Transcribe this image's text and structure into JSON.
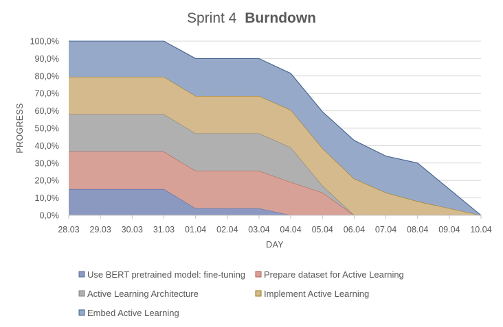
{
  "chart_data": {
    "type": "area",
    "stacked": true,
    "title": "Sprint 4 Burndown",
    "title_parts": {
      "normal": "Sprint 4",
      "bold": "Burndown"
    },
    "xlabel": "DAY",
    "ylabel": "PROGRESS",
    "ylim": [
      0,
      100
    ],
    "y_ticks": [
      "0,0%",
      "10,0%",
      "20,0%",
      "30,0%",
      "40,0%",
      "50,0%",
      "60,0%",
      "70,0%",
      "80,0%",
      "90,0%",
      "100,0%"
    ],
    "categories": [
      "28.03",
      "29.03",
      "30.03",
      "31.03",
      "01.04",
      "02.04",
      "03.04",
      "04.04",
      "05.04",
      "06.04",
      "07.04",
      "08.04",
      "09.04",
      "10.04"
    ],
    "grid": true,
    "legend_position": "bottom",
    "series": [
      {
        "name": "Use BERT pretrained model: fine-tuning",
        "color": "#8b98c0",
        "edge": "#5a6d9e",
        "values": [
          15,
          null,
          null,
          15,
          4,
          null,
          4,
          0,
          0,
          0,
          0,
          0,
          null,
          0
        ]
      },
      {
        "name": "Prepare dataset for Active Learning",
        "color": "#d8a197",
        "edge": "#b5614f",
        "values": [
          21.5,
          null,
          null,
          21.5,
          21.5,
          null,
          21.5,
          19,
          13,
          0,
          0,
          0,
          null,
          0
        ]
      },
      {
        "name": "Active Learning Architecture",
        "color": "#b0b0b0",
        "edge": "#7f7f7f",
        "values": [
          21.5,
          null,
          null,
          21.5,
          21.5,
          null,
          21.5,
          20,
          4,
          0,
          0,
          0,
          null,
          0
        ]
      },
      {
        "name": "Implement Active Learning",
        "color": "#d4ba8c",
        "edge": "#9a7a1e",
        "values": [
          21.5,
          null,
          null,
          21.5,
          21.5,
          null,
          21.5,
          21.5,
          21.5,
          21,
          13,
          8,
          null,
          0
        ]
      },
      {
        "name": "Embed Active Learning",
        "color": "#97a9c8",
        "edge": "#3e5f8e",
        "values": [
          20.5,
          null,
          null,
          20.5,
          21.5,
          null,
          21.5,
          21,
          21,
          22,
          21,
          22,
          null,
          0
        ]
      }
    ]
  }
}
